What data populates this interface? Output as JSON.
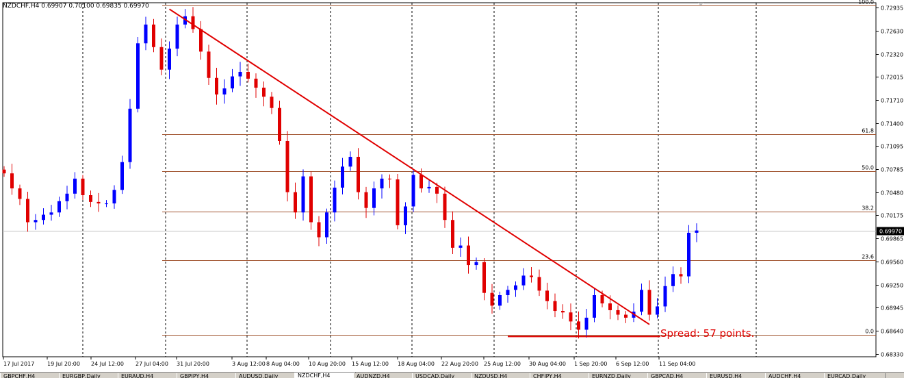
{
  "window": {
    "title": "NZDCHF,H4  0.69907 0.70100 0.69835 0.69970"
  },
  "chart_data": {
    "type": "candlestick",
    "symbol": "NZDCHF",
    "timeframe": "H4",
    "current_price": 0.6997,
    "price_axis": {
      "ylim": [
        0.6829,
        0.73
      ],
      "ticks": [
        "0.72935",
        "0.72630",
        "0.72320",
        "0.72015",
        "0.71710",
        "0.71400",
        "0.71095",
        "0.70785",
        "0.70480",
        "0.70175",
        "0.69865",
        "0.69560",
        "0.69250",
        "0.68945",
        "0.68640",
        "0.68330"
      ],
      "current_label": "0.69970"
    },
    "time_axis": {
      "labels": [
        "17 Jul 2017",
        "19 Jul 20:00",
        "24 Jul 12:00",
        "27 Jul 04:00",
        "31 Jul 20:00",
        "3 Aug 12:00",
        "8 Aug 04:00",
        "10 Aug 20:00",
        "15 Aug 12:00",
        "18 Aug 04:00",
        "22 Aug 20:00",
        "25 Aug 12:00",
        "30 Aug 04:00",
        "1 Sep 20:00",
        "6 Sep 12:00",
        "11 Sep 04:00"
      ]
    },
    "fibonacci": {
      "levels": [
        {
          "label": "100.0",
          "price": 0.7296
        },
        {
          "label": "61.8",
          "price": 0.7125
        },
        {
          "label": "50.0",
          "price": 0.7076
        },
        {
          "label": "38.2",
          "price": 0.70225
        },
        {
          "label": "23.6",
          "price": 0.6957
        },
        {
          "label": "0.0",
          "price": 0.6858
        }
      ],
      "color": "#a0522d"
    },
    "trendline": {
      "from": {
        "bar": 1,
        "price": 0.72915
      },
      "to": {
        "bar": 82,
        "price": 0.6872
      },
      "color": "#e00000"
    },
    "support_line": {
      "from_bar": 58,
      "to_bar": 82,
      "price": 0.68565,
      "color": "#e00000"
    },
    "annotation": {
      "text": "Spread: 57 points.",
      "color": "#e00000"
    },
    "closes": [
      0.7073,
      0.7053,
      0.7039,
      0.7008,
      0.7011,
      0.7018,
      0.7021,
      0.7036,
      0.7046,
      0.7066,
      0.7044,
      0.7035,
      0.7033,
      0.7033,
      0.7051,
      0.7088,
      0.7159,
      0.7246,
      0.7271,
      0.7241,
      0.7211,
      0.7239,
      0.7271,
      0.7282,
      0.7265,
      0.7235,
      0.72,
      0.7178,
      0.7186,
      0.7202,
      0.7208,
      0.7199,
      0.7187,
      0.7175,
      0.716,
      0.7116,
      0.7048,
      0.7021,
      0.7069,
      0.7008,
      0.6988,
      0.7021,
      0.7054,
      0.7082,
      0.7095,
      0.7048,
      0.7027,
      0.7053,
      0.7066,
      0.7065,
      0.7004,
      0.7029,
      0.7071,
      0.7053,
      0.7055,
      0.7046,
      0.7011,
      0.6974,
      0.6977,
      0.6951,
      0.6955,
      0.6914,
      0.6897,
      0.6911,
      0.6918,
      0.6924,
      0.6937,
      0.6935,
      0.6917,
      0.6903,
      0.689,
      0.6888,
      0.6876,
      0.6865,
      0.6881,
      0.6911,
      0.69,
      0.6891,
      0.6885,
      0.6881,
      0.6889,
      0.6918,
      0.6885,
      0.6896,
      0.6923,
      0.6939,
      0.6936,
      0.6994,
      0.6997
    ],
    "up_color": "#0000ff",
    "down_color": "#e00000"
  },
  "tabs": [
    "GBPCHF,H4",
    "EURGBP,Daily",
    "EURAUD,H4",
    "GBPJPY,H4",
    "AUDUSD,Daily",
    "NZDCHF,H4",
    "AUDNZD,H4",
    "USDCAD,Daily",
    "NZDUSD,H4",
    "CHFJPY,H4",
    "EURNZD,Daily",
    "GBPCAD,H4",
    "EURUSD,H4",
    "AUDCHF,H4",
    "EURCAD,Daily"
  ],
  "active_tab": 5
}
